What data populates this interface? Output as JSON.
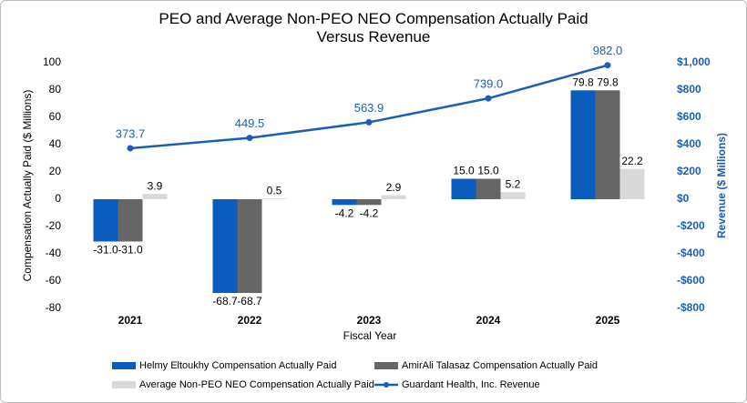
{
  "chart_data": {
    "type": "bar_line",
    "title": "PEO and Average Non-PEO NEO Compensation Actually Paid Versus Revenue",
    "x_label": "Fiscal Year",
    "y_label": "Compensation Actually Paid ($ Millions)",
    "y2_label": "Revenue ($ Millions)",
    "categories": [
      "2021",
      "2022",
      "2023",
      "2024",
      "2025"
    ],
    "ylim": [
      -80,
      100
    ],
    "yticks": [
      -80,
      -60,
      -40,
      -20,
      0,
      20,
      40,
      60,
      80,
      100
    ],
    "y2lim": [
      -800,
      1000
    ],
    "y2ticks": [
      {
        "value": -800,
        "label": "-$800"
      },
      {
        "value": -600,
        "label": "-$600"
      },
      {
        "value": -400,
        "label": "-$400"
      },
      {
        "value": -200,
        "label": "-$200"
      },
      {
        "value": 0,
        "label": "$0"
      },
      {
        "value": 200,
        "label": "$200"
      },
      {
        "value": 400,
        "label": "$400"
      },
      {
        "value": 600,
        "label": "$600"
      },
      {
        "value": 800,
        "label": "$800"
      },
      {
        "value": 1000,
        "label": "$1,000"
      }
    ],
    "series": [
      {
        "name": "Helmy Eltoukhy Compensation Actually Paid",
        "kind": "bar",
        "color": "#0b5cbf",
        "values": [
          -31.0,
          -68.7,
          -4.2,
          15.0,
          79.8
        ],
        "value_labels": [
          "-31.0",
          "-68.7",
          "-4.2",
          "15.0",
          "79.8"
        ]
      },
      {
        "name": "AmirAli Talasaz Compensation Actually Paid",
        "kind": "bar",
        "color": "#666666",
        "values": [
          -31.0,
          -68.7,
          -4.2,
          15.0,
          79.8
        ],
        "value_labels": [
          "-31.0",
          "-68.7",
          "-4.2",
          "15.0",
          "79.8"
        ]
      },
      {
        "name": "Average Non-PEO NEO Compensation Actually Paid",
        "kind": "bar",
        "color": "#d9d9d9",
        "values": [
          3.9,
          0.5,
          2.9,
          5.2,
          22.2
        ]
      },
      {
        "name": "Guardant Health, Inc. Revenue",
        "kind": "line",
        "axis": "y2",
        "color": "#1a5fb4",
        "values": [
          373.7,
          449.5,
          563.9,
          739.0,
          982.0
        ],
        "value_labels": [
          "373.7",
          "449.5",
          "563.9",
          "739.0",
          "982.0"
        ]
      }
    ]
  }
}
